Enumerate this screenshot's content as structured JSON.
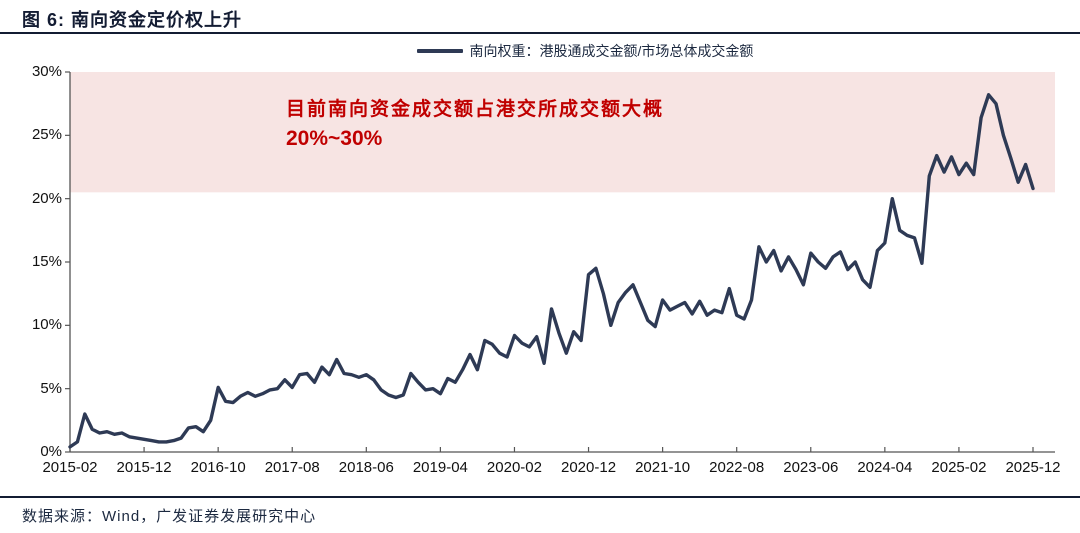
{
  "figure": {
    "title": "图 6: 南向资金定价权上升",
    "source": "数据来源：Wind，广发证券发展研究中心"
  },
  "legend": {
    "label": "南向权重：港股通成交金额/市场总体成交金额"
  },
  "annotation": {
    "line1": "目前南向资金成交额占港交所成交额大概",
    "line2": "20%~30%"
  },
  "colors": {
    "line": "#2e3a55",
    "band": "#f7e4e3",
    "annotation_red": "#c00000",
    "rule": "#131c33",
    "axis": "#555555"
  },
  "chart_data": {
    "type": "line",
    "title": "南向资金定价权上升",
    "series_name": "南向权重：港股通成交金额/市场总体成交金额",
    "frequency": "monthly",
    "ylim": [
      0,
      30
    ],
    "grid": false,
    "legend_position": "top-center",
    "y_tick_labels": [
      "0%",
      "5%",
      "10%",
      "15%",
      "20%",
      "25%",
      "30%"
    ],
    "x_tick_labels": [
      "2015-02",
      "2015-12",
      "2016-10",
      "2017-08",
      "2018-06",
      "2019-04",
      "2020-02",
      "2020-12",
      "2021-10",
      "2022-08",
      "2023-06",
      "2024-04",
      "2025-02",
      "2025-12"
    ],
    "band": {
      "from": 20.5,
      "to": 30,
      "note": "目前南向资金成交额占港交所成交额大概20%~30%"
    },
    "x": [
      "2015-02",
      "2015-03",
      "2015-04",
      "2015-05",
      "2015-06",
      "2015-07",
      "2015-08",
      "2015-09",
      "2015-10",
      "2015-11",
      "2015-12",
      "2016-01",
      "2016-02",
      "2016-03",
      "2016-04",
      "2016-05",
      "2016-06",
      "2016-07",
      "2016-08",
      "2016-09",
      "2016-10",
      "2016-11",
      "2016-12",
      "2017-01",
      "2017-02",
      "2017-03",
      "2017-04",
      "2017-05",
      "2017-06",
      "2017-07",
      "2017-08",
      "2017-09",
      "2017-10",
      "2017-11",
      "2017-12",
      "2018-01",
      "2018-02",
      "2018-03",
      "2018-04",
      "2018-05",
      "2018-06",
      "2018-07",
      "2018-08",
      "2018-09",
      "2018-10",
      "2018-11",
      "2018-12",
      "2019-01",
      "2019-02",
      "2019-03",
      "2019-04",
      "2019-05",
      "2019-06",
      "2019-07",
      "2019-08",
      "2019-09",
      "2019-10",
      "2019-11",
      "2019-12",
      "2020-01",
      "2020-02",
      "2020-03",
      "2020-04",
      "2020-05",
      "2020-06",
      "2020-07",
      "2020-08",
      "2020-09",
      "2020-10",
      "2020-11",
      "2020-12",
      "2021-01",
      "2021-02",
      "2021-03",
      "2021-04",
      "2021-05",
      "2021-06",
      "2021-07",
      "2021-08",
      "2021-09",
      "2021-10",
      "2021-11",
      "2021-12",
      "2022-01",
      "2022-02",
      "2022-03",
      "2022-04",
      "2022-05",
      "2022-06",
      "2022-07",
      "2022-08",
      "2022-09",
      "2022-10",
      "2022-11",
      "2022-12",
      "2023-01",
      "2023-02",
      "2023-03",
      "2023-04",
      "2023-05",
      "2023-06",
      "2023-07",
      "2023-08",
      "2023-09",
      "2023-10",
      "2023-11",
      "2023-12",
      "2024-01",
      "2024-02",
      "2024-03",
      "2024-04",
      "2024-05",
      "2024-06",
      "2024-07",
      "2024-08",
      "2024-09",
      "2024-10",
      "2024-11",
      "2024-12",
      "2025-01",
      "2025-02",
      "2025-03",
      "2025-04",
      "2025-05",
      "2025-06",
      "2025-07",
      "2025-08",
      "2025-09",
      "2025-10",
      "2025-11",
      "2025-12"
    ],
    "values": [
      0.4,
      0.8,
      3.0,
      1.8,
      1.5,
      1.6,
      1.4,
      1.5,
      1.2,
      1.1,
      1.0,
      0.9,
      0.8,
      0.8,
      0.9,
      1.1,
      1.9,
      2.0,
      1.6,
      2.5,
      5.1,
      4.0,
      3.9,
      4.4,
      4.7,
      4.4,
      4.6,
      4.9,
      5.0,
      5.7,
      5.1,
      6.1,
      6.2,
      5.5,
      6.7,
      6.1,
      7.3,
      6.2,
      6.1,
      5.9,
      6.1,
      5.7,
      4.9,
      4.5,
      4.3,
      4.5,
      6.2,
      5.5,
      4.9,
      5.0,
      4.6,
      5.8,
      5.5,
      6.5,
      7.7,
      6.5,
      8.8,
      8.5,
      7.8,
      7.5,
      9.2,
      8.6,
      8.3,
      9.1,
      7.0,
      11.3,
      9.4,
      7.8,
      9.5,
      8.8,
      14.0,
      14.5,
      12.5,
      10.0,
      11.8,
      12.6,
      13.2,
      11.8,
      10.4,
      9.9,
      12.0,
      11.2,
      11.5,
      11.8,
      10.9,
      11.9,
      10.8,
      11.2,
      11.0,
      12.9,
      10.8,
      10.5,
      12.0,
      16.2,
      15.0,
      15.9,
      14.3,
      15.4,
      14.4,
      13.2,
      15.7,
      15.0,
      14.5,
      15.4,
      15.8,
      14.4,
      15.0,
      13.6,
      13.0,
      15.9,
      16.5,
      20.0,
      17.5,
      17.1,
      16.9,
      14.9,
      21.8,
      23.4,
      22.1,
      23.3,
      21.9,
      22.8,
      21.9,
      26.4,
      28.2,
      27.5,
      25.0,
      23.2,
      21.3,
      22.7,
      20.8
    ]
  }
}
